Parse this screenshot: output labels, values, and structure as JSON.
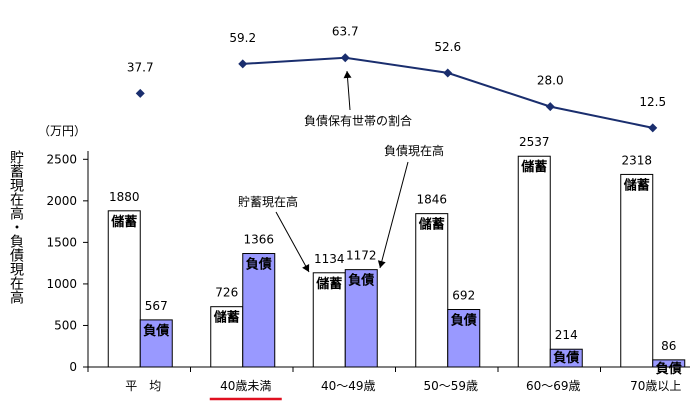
{
  "chart_data": {
    "type": "bar",
    "ylabel": "貯蓄現在高・負債現在高",
    "unit": "（万円）",
    "ylim": [
      0,
      2600
    ],
    "yticks": [
      0,
      500,
      1000,
      1500,
      2000,
      2500
    ],
    "categories": [
      "平　均",
      "40歳未満",
      "40～49歳",
      "50～59歳",
      "60～69歳",
      "70歳以上"
    ],
    "highlight_category_index": 1,
    "highlight_color": "#e01020",
    "series": [
      {
        "name": "貯蓄現在高",
        "bar_label": "儲蓄",
        "values": [
          1880,
          726,
          1134,
          1846,
          2537,
          2318
        ],
        "color": "#ffffff"
      },
      {
        "name": "負債現在高",
        "bar_label": "負債",
        "values": [
          567,
          1366,
          1172,
          692,
          214,
          86
        ],
        "color": "#9999ff"
      }
    ],
    "line": {
      "name": "負債保有世帯の割合",
      "values": [
        37.7,
        59.2,
        63.7,
        52.6,
        28.0,
        12.5
      ],
      "labels": [
        "37.7",
        "59.2",
        "63.7",
        "52.6",
        "28.0",
        "12.5"
      ],
      "connected_from_index": 1,
      "color": "#1a2e6e"
    },
    "annotations": {
      "line_note": "負債保有世帯の割合",
      "savings_note": "貯蓄現在高",
      "debt_note": "負債現在高"
    }
  }
}
